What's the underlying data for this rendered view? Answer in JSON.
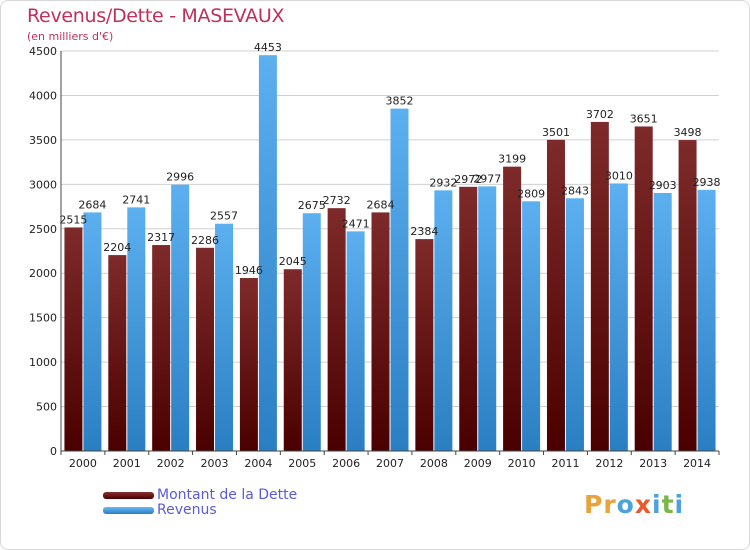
{
  "title": "Revenus/Dette - MASEVAUX",
  "subtitle": "(en milliers d'€)",
  "logo_letters": [
    {
      "ch": "P",
      "color": "#e8a33a"
    },
    {
      "ch": "r",
      "color": "#e8a33a"
    },
    {
      "ch": "o",
      "color": "#4aa3df"
    },
    {
      "ch": "x",
      "color": "#e85a2a"
    },
    {
      "ch": "i",
      "color": "#4aa3df"
    },
    {
      "ch": "t",
      "color": "#7ab648"
    },
    {
      "ch": "i",
      "color": "#4aa3df"
    }
  ],
  "colors": {
    "dette": "#7a2020",
    "dette_dark": "#4a0000",
    "revenus": "#55aaee",
    "revenus_dark": "#2a7ec2",
    "grid": "#d0d0d0",
    "axis": "#444444"
  },
  "legend": [
    {
      "label": "Montant de la Dette",
      "color": "#6a1010"
    },
    {
      "label": "Revenus",
      "color": "#4aa3df"
    }
  ],
  "chart_data": {
    "type": "bar",
    "title": "Revenus/Dette - MASEVAUX",
    "subtitle": "(en milliers d'€)",
    "categories": [
      "2000",
      "2001",
      "2002",
      "2003",
      "2004",
      "2005",
      "2006",
      "2007",
      "2008",
      "2009",
      "2010",
      "2011",
      "2012",
      "2013",
      "2014"
    ],
    "series": [
      {
        "name": "Montant de la Dette",
        "values": [
          2515,
          2204,
          2317,
          2286,
          1946,
          2045,
          2732,
          2684,
          2384,
          2972,
          3199,
          3501,
          3702,
          3651,
          3498
        ],
        "labels": [
          "2515",
          "2204",
          "2317",
          "2286",
          "1946",
          "2045",
          "2732",
          "2684",
          "2384",
          "2972",
          "3199",
          "3501",
          "3702",
          "3651",
          "3498"
        ]
      },
      {
        "name": "Revenus",
        "values": [
          2684,
          2741,
          2996,
          2557,
          4453,
          2675,
          2471,
          3852,
          2932,
          2977,
          2809,
          2843,
          3010,
          2903,
          2938
        ],
        "labels": [
          "2684",
          "2741",
          "2996",
          "2557",
          "4453",
          "2675",
          "2471",
          "3852",
          "2932",
          "2977",
          "2809",
          "2843",
          "3010",
          "2903",
          "2938"
        ]
      }
    ],
    "ylim": [
      0,
      4500
    ],
    "yticks": [
      0,
      500,
      1000,
      1500,
      2000,
      2500,
      3000,
      3500,
      4000,
      4500
    ],
    "grid": true,
    "legend_position": "bottom-left"
  }
}
